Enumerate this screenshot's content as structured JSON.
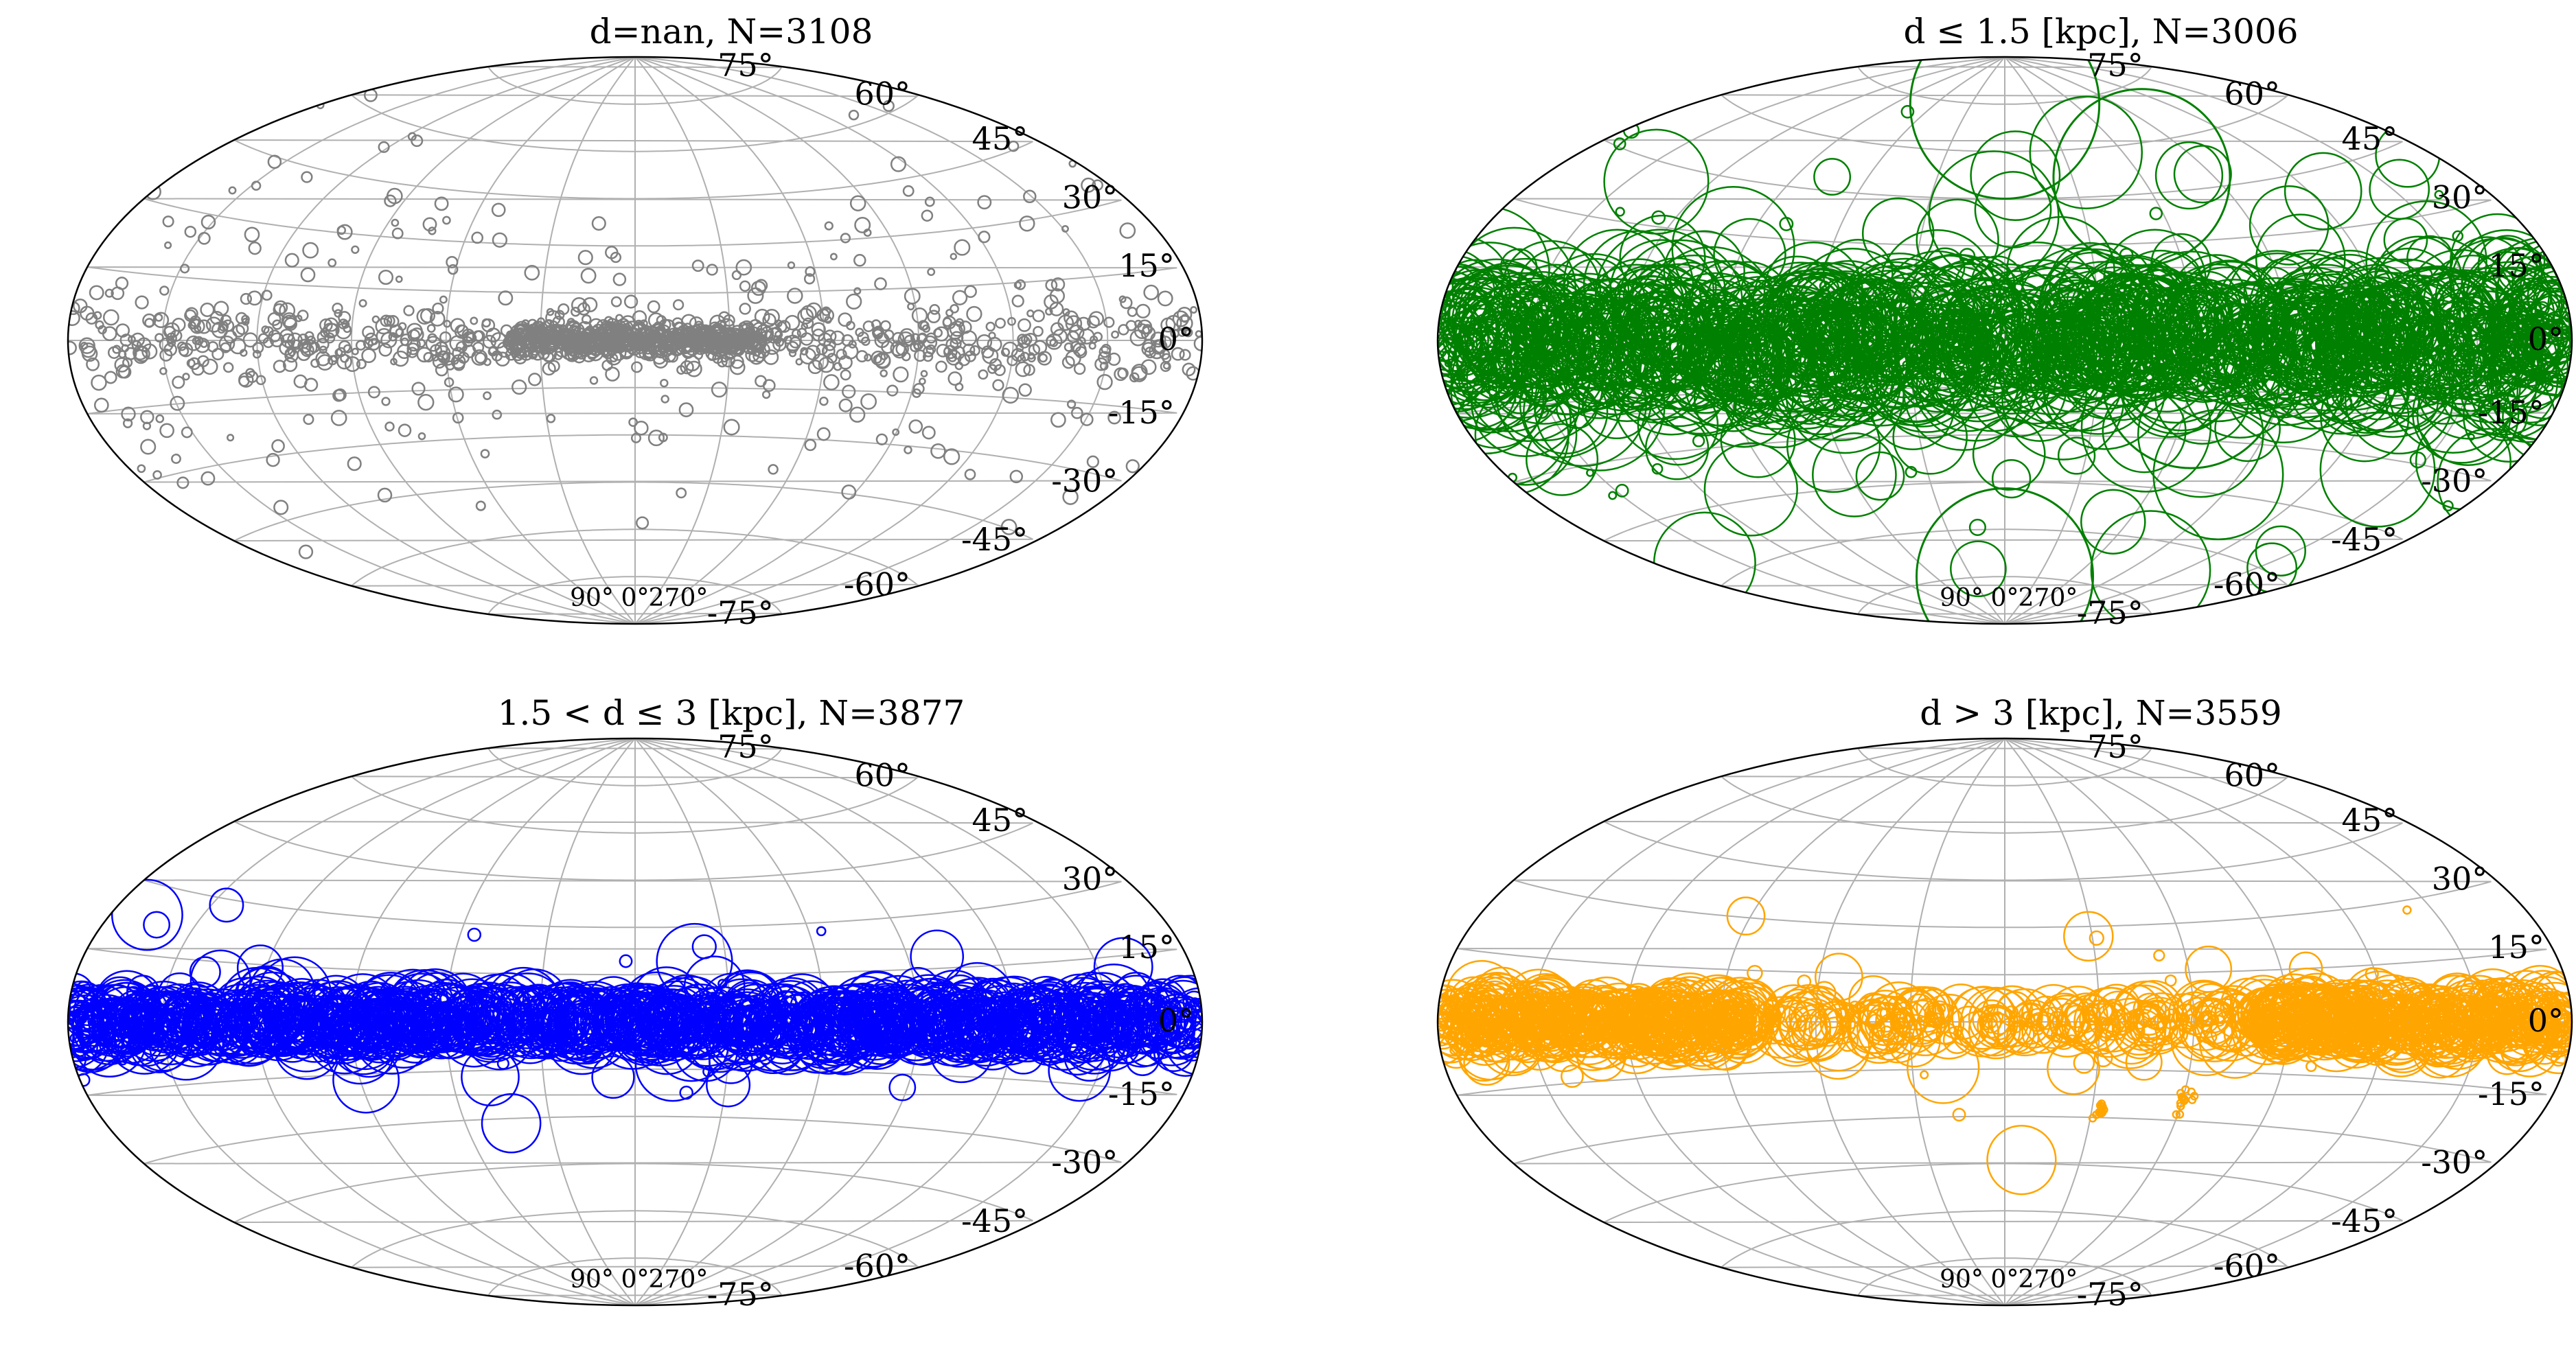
{
  "figure": {
    "background": "#ffffff",
    "grid_color": "#b0b0b0"
  },
  "chart_data": [
    {
      "type": "scatter",
      "projection": "aitoff",
      "title": "d=nan, N=3108",
      "color": "#808080",
      "marker": "open-circle",
      "lat_ticks": [
        "75°",
        "60°",
        "45°",
        "30°",
        "15°",
        "0°",
        "-15°",
        "-30°",
        "-45°",
        "-60°",
        "-75°"
      ],
      "lon_ticks": [
        "90°",
        "0°",
        "270°"
      ],
      "grid": true,
      "series": [
        {
          "band_center_lat": 0,
          "band_halfwidth_deg": 3.0,
          "dense_lon_ranges": [
            [
              -40,
              40
            ]
          ],
          "n_points": 3108,
          "scattered_high_lat_fraction": 0.18,
          "typical_radius": "small"
        }
      ]
    },
    {
      "type": "scatter",
      "projection": "aitoff",
      "title": "d ≤ 1.5 [kpc], N=3006",
      "color": "#008000",
      "marker": "open-circle",
      "lat_ticks": [
        "75°",
        "60°",
        "45°",
        "30°",
        "15°",
        "0°",
        "-15°",
        "-30°",
        "-45°",
        "-60°",
        "-75°"
      ],
      "lon_ticks": [
        "90°",
        "0°",
        "270°"
      ],
      "grid": true,
      "series": [
        {
          "band_center_lat": 0,
          "band_halfwidth_deg": 8,
          "n_points": 3006,
          "typical_radius": "large",
          "notable_large_circles": [
            [
              0,
              75,
              15
            ],
            [
              0,
              -75,
              14
            ],
            [
              300,
              50,
              14
            ],
            [
              300,
              -12,
              14
            ]
          ]
        }
      ]
    },
    {
      "type": "scatter",
      "projection": "aitoff",
      "title": "1.5 < d ≤ 3 [kpc], N=3877",
      "color": "#0000ff",
      "marker": "open-circle",
      "lat_ticks": [
        "75°",
        "60°",
        "45°",
        "30°",
        "15°",
        "0°",
        "-15°",
        "-30°",
        "-45°",
        "-60°",
        "-75°"
      ],
      "lon_ticks": [
        "90°",
        "0°",
        "270°"
      ],
      "grid": true,
      "series": [
        {
          "band_center_lat": 0,
          "band_halfwidth_deg": 3.5,
          "n_points": 3877,
          "typical_radius": "medium"
        }
      ]
    },
    {
      "type": "scatter",
      "projection": "aitoff",
      "title": "d > 3 [kpc], N=3559",
      "color": "#ffa500",
      "marker": "open-circle",
      "lat_ticks": [
        "75°",
        "60°",
        "45°",
        "30°",
        "15°",
        "0°",
        "-15°",
        "-30°",
        "-45°",
        "-60°",
        "-75°"
      ],
      "lon_ticks": [
        "90°",
        "0°",
        "270°"
      ],
      "grid": true,
      "series": [
        {
          "band_center_lat": 0,
          "band_halfwidth_deg": 3.0,
          "n_points": 3559,
          "typical_radius": "medium",
          "clusters": [
            [
              300,
              -23,
              1.5
            ],
            [
              327,
              -28,
              1.0
            ]
          ]
        }
      ]
    }
  ]
}
